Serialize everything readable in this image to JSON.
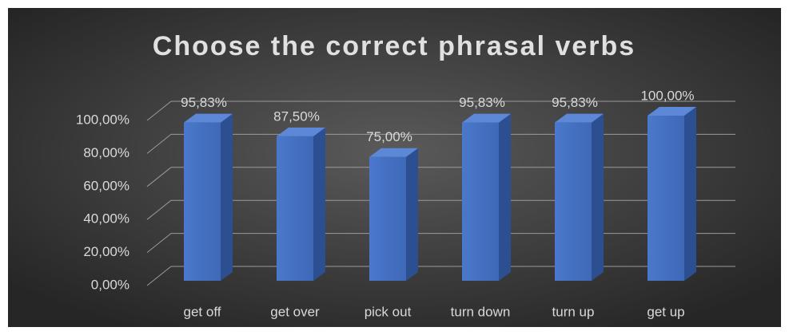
{
  "chart_data": {
    "type": "bar",
    "title": "Choose the correct phrasal verbs",
    "categories": [
      "get off",
      "get over",
      "pick out",
      "turn down",
      "turn up",
      "get up"
    ],
    "values": [
      95.83,
      87.5,
      75,
      95.83,
      95.83,
      100
    ],
    "value_labels": [
      "95,83%",
      "87,50%",
      "75,00%",
      "95,83%",
      "95,83%",
      "100,00%"
    ],
    "color": "#4472c4",
    "ylim": [
      0,
      100
    ],
    "yticks": [
      {
        "value": 0,
        "label": "0,00%"
      },
      {
        "value": 20,
        "label": "20,00%"
      },
      {
        "value": 40,
        "label": "40,00%"
      },
      {
        "value": 60,
        "label": "60,00%"
      },
      {
        "value": 80,
        "label": "80,00%"
      },
      {
        "value": 100,
        "label": "100,00%"
      }
    ],
    "grid": true
  }
}
